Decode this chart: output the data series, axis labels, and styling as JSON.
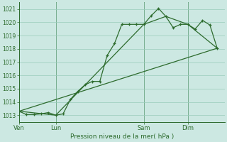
{
  "bg_color": "#cce8e2",
  "grid_color": "#99ccbb",
  "line_dark": "#2d6b2d",
  "line_mid": "#336b33",
  "title": "Pression niveau de la mer( hPa )",
  "ylim": [
    1012.5,
    1021.5
  ],
  "yticks": [
    1013,
    1014,
    1015,
    1016,
    1017,
    1018,
    1019,
    1020,
    1021
  ],
  "day_labels": [
    "Ven",
    "Lun",
    "Sam",
    "Dim"
  ],
  "day_positions": [
    0,
    5,
    17,
    23
  ],
  "xlim": [
    0,
    28
  ],
  "s1x": [
    0,
    1,
    2,
    3,
    4,
    5,
    6,
    7,
    8,
    9,
    10,
    11,
    12,
    13,
    14,
    15,
    16,
    17,
    18,
    19,
    20,
    21,
    22,
    23,
    24,
    25,
    26,
    27
  ],
  "s1y": [
    1013.3,
    1013.05,
    1013.05,
    1013.1,
    1013.2,
    1013.0,
    1013.1,
    1014.2,
    1014.8,
    1015.3,
    1015.55,
    1015.55,
    1017.5,
    1018.4,
    1019.85,
    1019.85,
    1019.85,
    1019.85,
    1020.5,
    1021.05,
    1020.45,
    1019.6,
    1019.85,
    1019.85,
    1019.5,
    1020.15,
    1019.8,
    1018.05
  ],
  "s2x": [
    0,
    5,
    17,
    20,
    23,
    27
  ],
  "s2y": [
    1013.3,
    1013.0,
    1019.85,
    1020.45,
    1019.85,
    1018.05
  ],
  "s3x": [
    0,
    27
  ],
  "s3y": [
    1013.3,
    1018.05
  ]
}
